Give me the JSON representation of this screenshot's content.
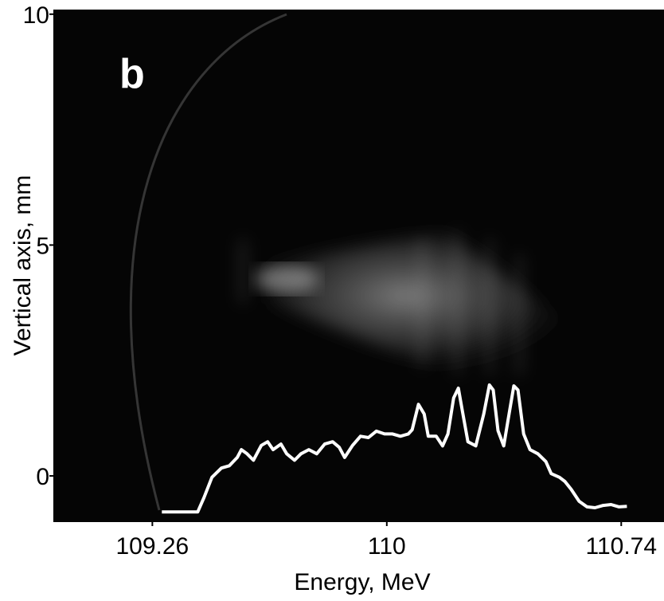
{
  "chart_data": {
    "type": "line",
    "annotation": "b",
    "x_label": "Energy, MeV",
    "y_label": "Vertical axis, mm",
    "xlim": [
      108.95,
      110.875
    ],
    "xticks": [
      109.26,
      110,
      110.74
    ],
    "ylim": [
      -1,
      10.1
    ],
    "yticks": [
      0,
      5,
      10
    ],
    "series": [
      {
        "color": "#ffffff",
        "x": [
          109.29,
          109.403,
          109.423,
          109.448,
          109.478,
          109.503,
          109.528,
          109.541,
          109.559,
          109.579,
          109.604,
          109.624,
          109.641,
          109.666,
          109.684,
          109.709,
          109.729,
          109.754,
          109.779,
          109.804,
          109.829,
          109.85,
          109.867,
          109.892,
          109.917,
          109.942,
          109.967,
          109.993,
          110.018,
          110.043,
          110.068,
          110.08,
          110.1,
          110.118,
          110.131,
          110.156,
          110.176,
          110.193,
          110.211,
          110.226,
          110.238,
          110.256,
          110.281,
          110.306,
          110.324,
          110.336,
          110.351,
          110.369,
          110.386,
          110.401,
          110.414,
          110.432,
          110.452,
          110.477,
          110.502,
          110.519,
          110.545,
          110.562,
          110.582,
          110.607,
          110.632,
          110.657,
          110.683,
          110.708,
          110.733,
          110.758
        ],
        "values": [
          -0.78,
          -0.78,
          -0.47,
          -0.03,
          0.17,
          0.22,
          0.4,
          0.57,
          0.48,
          0.34,
          0.66,
          0.74,
          0.57,
          0.69,
          0.48,
          0.34,
          0.48,
          0.57,
          0.48,
          0.69,
          0.74,
          0.62,
          0.4,
          0.66,
          0.86,
          0.83,
          0.97,
          0.91,
          0.91,
          0.86,
          0.91,
          1.0,
          1.55,
          1.34,
          0.86,
          0.86,
          0.65,
          0.91,
          1.69,
          1.9,
          1.43,
          0.74,
          0.65,
          1.34,
          1.97,
          1.86,
          0.98,
          0.65,
          1.34,
          1.95,
          1.86,
          0.91,
          0.57,
          0.48,
          0.31,
          0.05,
          -0.03,
          -0.12,
          -0.29,
          -0.55,
          -0.67,
          -0.69,
          -0.64,
          -0.62,
          -0.67,
          -0.66
        ]
      }
    ]
  }
}
